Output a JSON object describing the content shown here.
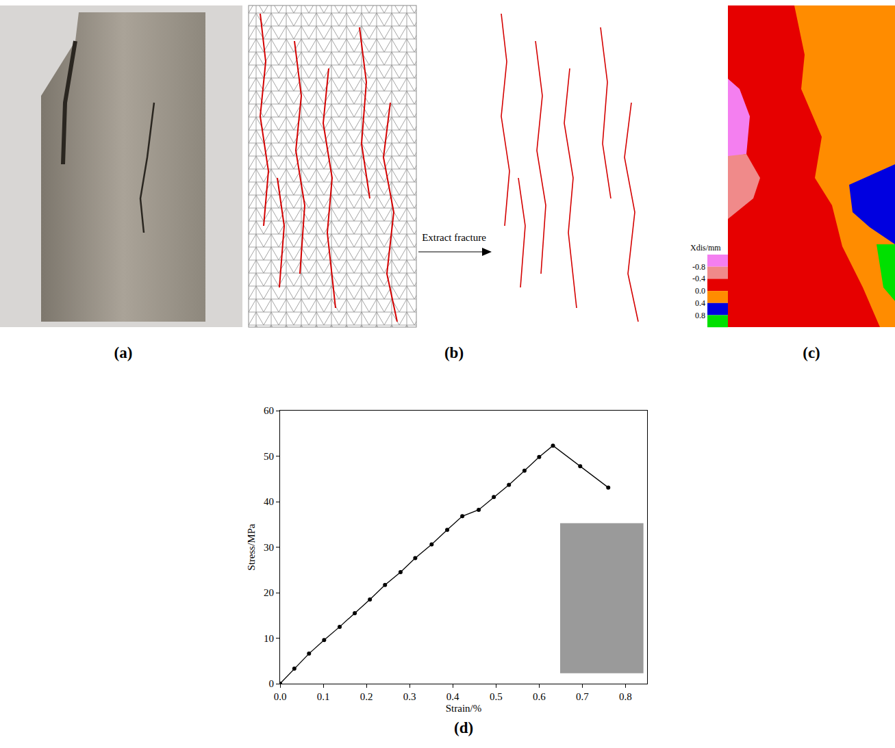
{
  "figure": {
    "panel_labels": [
      "(a)",
      "(b)",
      "(c)"
    ],
    "arrow_label": "Extract fracture",
    "displacement_key": {
      "title": "Xdis/mm",
      "levels": [
        -0.8,
        -0.4,
        {
          "value": 0,
          "label": "0.0"
        },
        0.4,
        0.8
      ],
      "colors": [
        "#f47ff0",
        "#f08a8a",
        "#e60000",
        "#ff8c00",
        "#0000e0",
        "#00e000"
      ]
    }
  },
  "chart_data": {
    "type": "line",
    "marker": "circle",
    "color": "#000000",
    "xlabel": "Strain/%",
    "ylabel": "Stress/MPa",
    "annotations": [
      "(d)"
    ],
    "x": [
      0,
      0.033,
      0.067,
      0.102,
      0.138,
      0.173,
      0.208,
      0.243,
      0.279,
      0.313,
      0.351,
      0.387,
      0.422,
      0.46,
      0.495,
      0.53,
      0.566,
      0.6,
      0.632,
      0.695,
      0.76
    ],
    "values": [
      0,
      3.3,
      6.6,
      9.6,
      12.5,
      15.5,
      18.5,
      21.7,
      24.5,
      27.6,
      30.6,
      33.8,
      36.8,
      38.2,
      41.0,
      43.7,
      46.8,
      49.8,
      52.3,
      47.8,
      43.1
    ],
    "xlim": [
      0,
      0.85
    ],
    "xticks": [
      {
        "value": 0,
        "label": "0.0"
      },
      0.1,
      0.2,
      0.3,
      0.4,
      0.5,
      0.6,
      0.7,
      0.8
    ],
    "ylim": [
      0,
      60
    ],
    "yticks": [
      0,
      10,
      20,
      30,
      40,
      50,
      60
    ],
    "grid": false
  }
}
